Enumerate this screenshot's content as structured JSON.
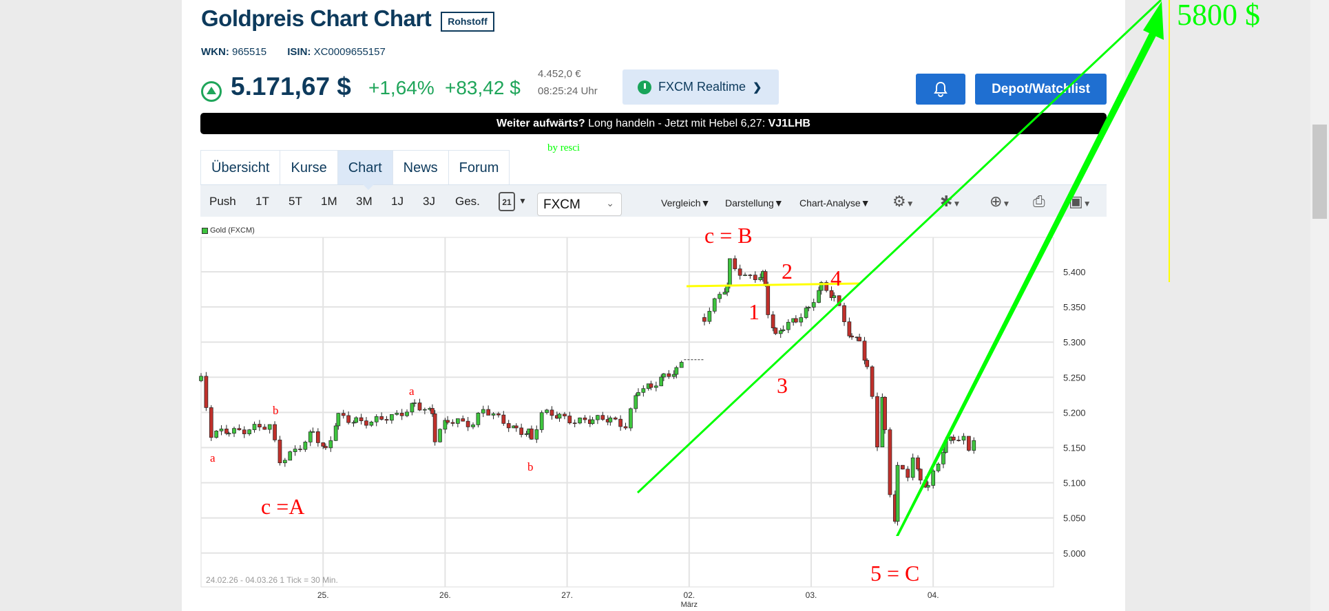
{
  "header": {
    "title": "Goldpreis Chart Chart",
    "badge": "Rohstoff",
    "wkn_label": "WKN:",
    "wkn": "965515",
    "isin_label": "ISIN:",
    "isin": "XC0009655157",
    "price": "5.171,67 $",
    "change_pct": "+1,64%",
    "change_abs": "+83,42 $",
    "price_eur": "4.452,0 €",
    "time": "08:25:24 Uhr",
    "source_button": "FXCM Realtime",
    "watchlist_button": "Depot/Watchlist",
    "trend_icon": "arrow-up-circle-icon"
  },
  "banner": {
    "lead": "Weiter aufwärts?",
    "text": " Long handeln - Jetzt mit Hebel 6,27: ",
    "code": "VJ1LHB"
  },
  "tabs": [
    {
      "label": "Übersicht"
    },
    {
      "label": "Kurse"
    },
    {
      "label": "Chart",
      "active": true
    },
    {
      "label": "News"
    },
    {
      "label": "Forum"
    }
  ],
  "toolbar": {
    "ranges": [
      "Push",
      "1T",
      "5T",
      "1M",
      "3M",
      "1J",
      "3J",
      "Ges."
    ],
    "calendar_day": "21",
    "exchange": "FXCM",
    "menus": [
      "Vergleich",
      "Darstellung",
      "Chart-Analyse"
    ]
  },
  "colors": {
    "accent": "#1f6fd1",
    "up": "#1fa55a",
    "candle_up": "#3ec43e",
    "candle_down": "#c0302b",
    "annotation_red": "#ff0000",
    "annotation_green": "#00ff00",
    "annotation_yellow": "#ffff00"
  },
  "annotations": {
    "signature": "by resci",
    "target": "5800 $",
    "labels": [
      "c = B",
      "2",
      "4",
      "1",
      "3",
      "5 = C",
      "c =A",
      "a",
      "b",
      "a",
      "b"
    ]
  },
  "chart_data": {
    "type": "candlestick",
    "legend": "Gold (FXCM)",
    "footer": "24.02.26 - 04.03.26  1 Tick = 30 Min.",
    "ylim": [
      4950,
      5450
    ],
    "yticks": [
      5000,
      5050,
      5100,
      5150,
      5200,
      5250,
      5300,
      5350,
      5400
    ],
    "ytick_labels": [
      "5.000",
      "5.050",
      "5.100",
      "5.150",
      "5.200",
      "5.250",
      "5.300",
      "5.350",
      "5.400"
    ],
    "days": [
      "24.02",
      "25.02",
      "26.02",
      "27.02",
      "02.03",
      "03.03",
      "04.03"
    ],
    "xtick_labels": [
      "25.",
      "26.",
      "27.",
      "02.",
      "03.",
      "04."
    ],
    "month_label": "März",
    "grid": true,
    "price_path": [
      [
        "24.02",
        "00:00",
        5245
      ],
      [
        "24.02",
        "02:00",
        5166
      ],
      [
        "24.02",
        "05:30",
        5175
      ],
      [
        "24.02",
        "10:30",
        5178
      ],
      [
        "24.02",
        "13:30",
        5178
      ],
      [
        "24.02",
        "15:30",
        5130
      ],
      [
        "24.02",
        "18:30",
        5148
      ],
      [
        "24.02",
        "22:00",
        5172
      ],
      [
        "25.02",
        "00:30",
        5142
      ],
      [
        "25.02",
        "01:30",
        5160
      ],
      [
        "25.02",
        "03:00",
        5196
      ],
      [
        "25.02",
        "06:30",
        5190
      ],
      [
        "25.02",
        "09:30",
        5184
      ],
      [
        "25.02",
        "14:30",
        5196
      ],
      [
        "25.02",
        "18:00",
        5214
      ],
      [
        "25.02",
        "21:30",
        5196
      ],
      [
        "25.02",
        "22:00",
        5160
      ],
      [
        "26.02",
        "00:30",
        5190
      ],
      [
        "26.02",
        "02:30",
        5190
      ],
      [
        "26.02",
        "05:30",
        5184
      ],
      [
        "26.02",
        "07:30",
        5202
      ],
      [
        "26.02",
        "10:30",
        5190
      ],
      [
        "26.02",
        "14:00",
        5178
      ],
      [
        "26.02",
        "16:30",
        5172
      ],
      [
        "26.02",
        "17:00",
        5160
      ],
      [
        "26.02",
        "19:00",
        5196
      ],
      [
        "26.02",
        "22:30",
        5196
      ],
      [
        "27.02",
        "01:30",
        5190
      ],
      [
        "27.02",
        "05:00",
        5187
      ],
      [
        "27.02",
        "08:30",
        5190
      ],
      [
        "27.02",
        "11:30",
        5184
      ],
      [
        "27.02",
        "14:00",
        5233
      ],
      [
        "27.02",
        "16:30",
        5233
      ],
      [
        "27.02",
        "19:00",
        5251
      ],
      [
        "27.02",
        "21:30",
        5263
      ],
      [
        "27.02",
        "23:00",
        5275
      ],
      [
        "02.03",
        "03:00",
        5335
      ],
      [
        "02.03",
        "06:00",
        5365
      ],
      [
        "02.03",
        "07:30",
        5377
      ],
      [
        "02.03",
        "08:00",
        5413
      ],
      [
        "02.03",
        "11:00",
        5395
      ],
      [
        "02.03",
        "14:30",
        5395
      ],
      [
        "02.03",
        "15:00",
        5377
      ],
      [
        "02.03",
        "15:30",
        5341
      ],
      [
        "02.03",
        "17:00",
        5305
      ],
      [
        "02.03",
        "18:30",
        5323
      ],
      [
        "02.03",
        "21:00",
        5335
      ],
      [
        "02.03",
        "23:30",
        5347
      ],
      [
        "03.03",
        "02:00",
        5377
      ],
      [
        "03.03",
        "04:30",
        5365
      ],
      [
        "03.03",
        "06:30",
        5335
      ],
      [
        "03.03",
        "08:00",
        5305
      ],
      [
        "03.03",
        "09:30",
        5305
      ],
      [
        "03.03",
        "11:00",
        5257
      ],
      [
        "03.03",
        "12:00",
        5220
      ],
      [
        "03.03",
        "13:00",
        5154
      ],
      [
        "03.03",
        "14:00",
        5220
      ],
      [
        "03.03",
        "14:30",
        5172
      ],
      [
        "03.03",
        "15:30",
        5088
      ],
      [
        "03.03",
        "16:30",
        5052
      ],
      [
        "03.03",
        "17:00",
        5124
      ],
      [
        "03.03",
        "19:00",
        5112
      ],
      [
        "03.03",
        "20:00",
        5136
      ],
      [
        "03.03",
        "21:30",
        5100
      ],
      [
        "03.03",
        "23:00",
        5094
      ],
      [
        "04.03",
        "01:00",
        5130
      ],
      [
        "04.03",
        "02:30",
        5160
      ],
      [
        "04.03",
        "04:00",
        5166
      ],
      [
        "04.03",
        "06:00",
        5160
      ],
      [
        "04.03",
        "07:00",
        5142
      ],
      [
        "04.03",
        "08:30",
        5172
      ]
    ]
  }
}
